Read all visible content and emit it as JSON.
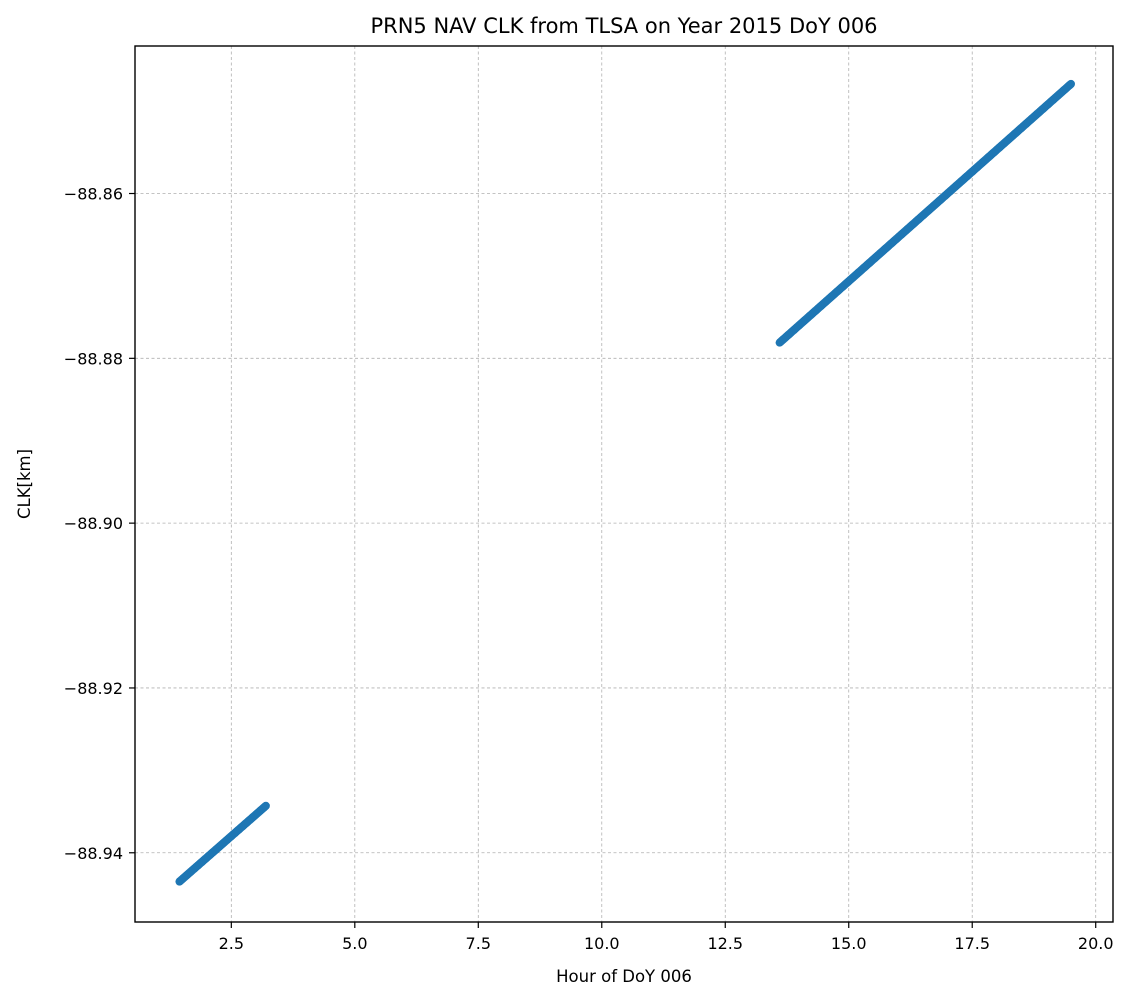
{
  "chart_data": {
    "type": "scatter",
    "title": "PRN5 NAV CLK from TLSA on Year 2015 DoY 006",
    "xlabel": "Hour of DoY 006",
    "ylabel": "CLK[km]",
    "xlim": [
      0.55,
      20.35
    ],
    "ylim": [
      -88.9484,
      -88.8421
    ],
    "xticks": [
      2.5,
      5.0,
      7.5,
      10.0,
      12.5,
      15.0,
      17.5,
      20.0
    ],
    "xtick_labels": [
      "2.5",
      "5.0",
      "7.5",
      "10.0",
      "12.5",
      "15.0",
      "17.5",
      "20.0"
    ],
    "yticks": [
      -88.86,
      -88.88,
      -88.9,
      -88.92,
      -88.94
    ],
    "ytick_labels": [
      "−88.86",
      "−88.88",
      "−88.90",
      "−88.92",
      "−88.94"
    ],
    "grid": true,
    "marker_color": "#1f77b4",
    "series": [
      {
        "segments": [
          {
            "x_start": 1.45,
            "y_start": -88.9435,
            "x_end": 3.2,
            "y_end": -88.9343,
            "step_hours": 0.0083333
          },
          {
            "x_start": 13.6,
            "y_start": -88.8781,
            "x_end": 19.5,
            "y_end": -88.8467,
            "step_hours": 0.0083333
          }
        ]
      }
    ]
  }
}
